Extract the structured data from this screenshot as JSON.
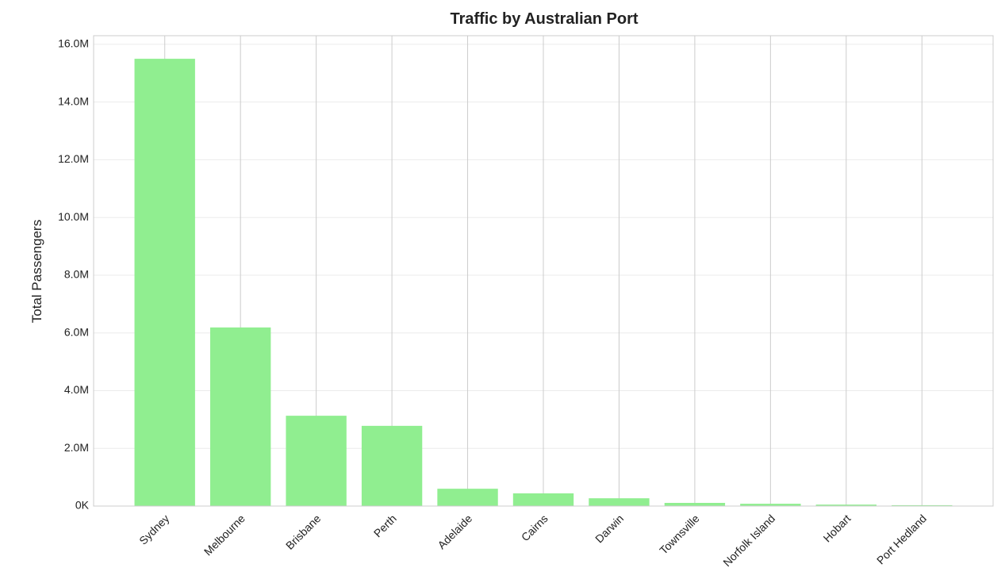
{
  "chart_data": {
    "type": "bar",
    "title": "Traffic by Australian Port",
    "y_label": "Total Passengers",
    "categories": [
      "Sydney",
      "Melbourne",
      "Brisbane",
      "Perth",
      "Adelaide",
      "Cairns",
      "Darwin",
      "Townsville",
      "Norfolk Island",
      "Hobart",
      "Port Hedland"
    ],
    "values": [
      15500000,
      6190000,
      3130000,
      2780000,
      600000,
      440000,
      270000,
      110000,
      80000,
      50000,
      30000
    ],
    "color": "#90ee90",
    "ylim": [
      0,
      16300000
    ],
    "yticks": [
      {
        "value": 0,
        "label": "0K"
      },
      {
        "value": 2000000,
        "label": "2.0M"
      },
      {
        "value": 4000000,
        "label": "4.0M"
      },
      {
        "value": 6000000,
        "label": "6.0M"
      },
      {
        "value": 8000000,
        "label": "8.0M"
      },
      {
        "value": 10000000,
        "label": "10.0M"
      },
      {
        "value": 12000000,
        "label": "12.0M"
      },
      {
        "value": 14000000,
        "label": "14.0M"
      },
      {
        "value": 16000000,
        "label": "16.0M"
      }
    ],
    "grid": true
  }
}
